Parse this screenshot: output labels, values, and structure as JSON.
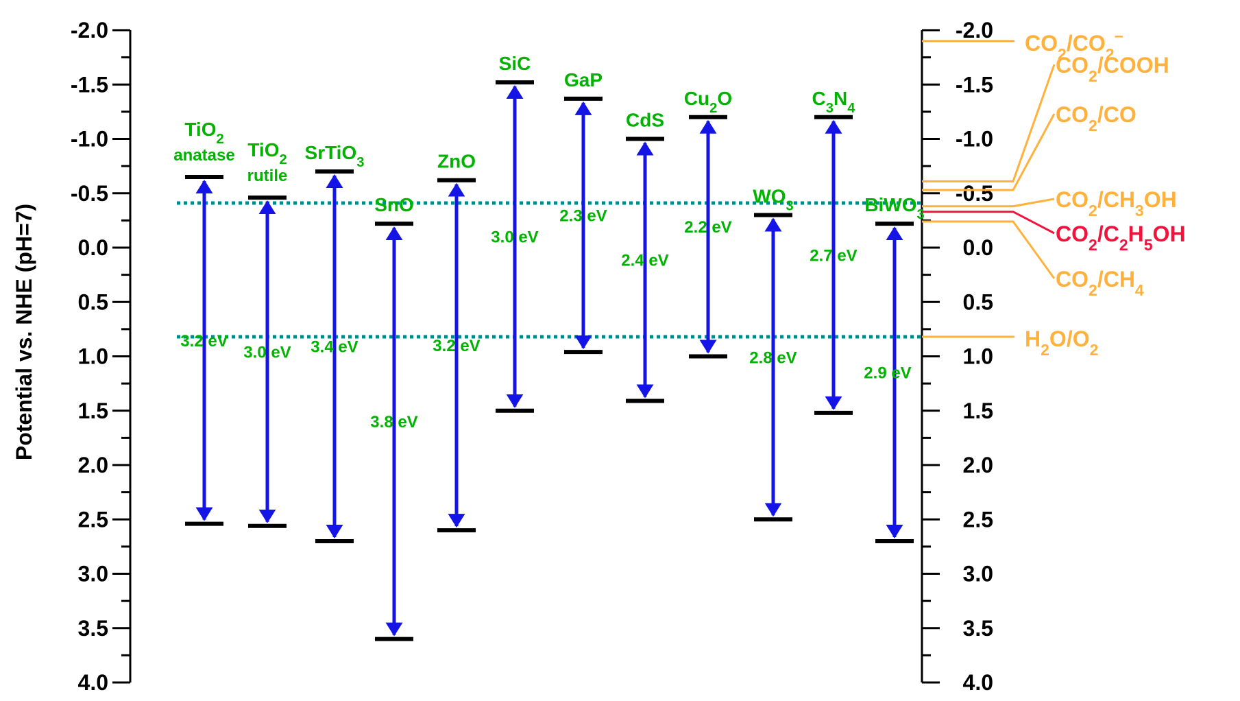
{
  "chart_data": {
    "type": "band-diagram",
    "ylabel": "Potential vs. NHE (pH=7)",
    "ylim": [
      -2.0,
      4.0
    ],
    "y_ticks": [
      -2.0,
      -1.5,
      -1.0,
      -0.5,
      0.0,
      0.5,
      1.0,
      1.5,
      2.0,
      2.5,
      3.0,
      3.5,
      4.0
    ],
    "y_tick_labels": [
      "-2.0",
      "-1.5",
      "-1.0",
      "-0.5",
      "0.0",
      "0.5",
      "1.0",
      "1.5",
      "2.0",
      "2.5",
      "3.0",
      "3.5",
      "4.0"
    ],
    "reference_lines": [
      {
        "value": -0.41
      },
      {
        "value": 0.82
      }
    ],
    "materials": [
      {
        "name": "TiO2",
        "sub": "anatase",
        "cb": -0.65,
        "vb": 2.54,
        "gap_label": "3.2 eV"
      },
      {
        "name": "TiO2",
        "sub": "rutile",
        "cb": -0.46,
        "vb": 2.56,
        "gap_label": "3.0 eV"
      },
      {
        "name": "SrTiO3",
        "sub": "",
        "cb": -0.7,
        "vb": 2.7,
        "gap_label": "3.4 eV"
      },
      {
        "name": "SnO",
        "sub": "",
        "cb": -0.22,
        "vb": 3.6,
        "gap_label": "3.8 eV"
      },
      {
        "name": "ZnO",
        "sub": "",
        "cb": -0.62,
        "vb": 2.6,
        "gap_label": "3.2 eV"
      },
      {
        "name": "SiC",
        "sub": "",
        "cb": -1.52,
        "vb": 1.5,
        "gap_label": "3.0 eV"
      },
      {
        "name": "GaP",
        "sub": "",
        "cb": -1.37,
        "vb": 0.96,
        "gap_label": "2.3 eV"
      },
      {
        "name": "CdS",
        "sub": "",
        "cb": -1.0,
        "vb": 1.41,
        "gap_label": "2.4 eV"
      },
      {
        "name": "Cu2O",
        "sub": "",
        "cb": -1.2,
        "vb": 1.0,
        "gap_label": "2.2 eV"
      },
      {
        "name": "WO3",
        "sub": "",
        "cb": -0.3,
        "vb": 2.5,
        "gap_label": "2.8 eV"
      },
      {
        "name": "C3N4",
        "sub": "",
        "cb": -1.2,
        "vb": 1.52,
        "gap_label": "2.7 eV"
      },
      {
        "name": "BiWO3",
        "sub": "",
        "cb": -0.22,
        "vb": 2.7,
        "gap_label": "2.9 eV"
      }
    ],
    "redox_couples": [
      {
        "label": "CO2/CO2-",
        "value": -1.9
      },
      {
        "label": "CO2/COOH",
        "value": -0.61
      },
      {
        "label": "CO2/CO",
        "value": -0.53
      },
      {
        "label": "CO2/CH3OH",
        "value": -0.38
      },
      {
        "label": "CO2/C2H5OH",
        "value": -0.33
      },
      {
        "label": "CO2/CH4",
        "value": -0.24
      },
      {
        "label": "H2O/O2",
        "value": 0.82
      }
    ],
    "colors": {
      "arrow": "#1414e6",
      "material_text": "#00b300",
      "ref_line": "#008b8b",
      "redox": "#ffb13b",
      "highlight": "#f0143c",
      "axis": "#000000"
    }
  }
}
